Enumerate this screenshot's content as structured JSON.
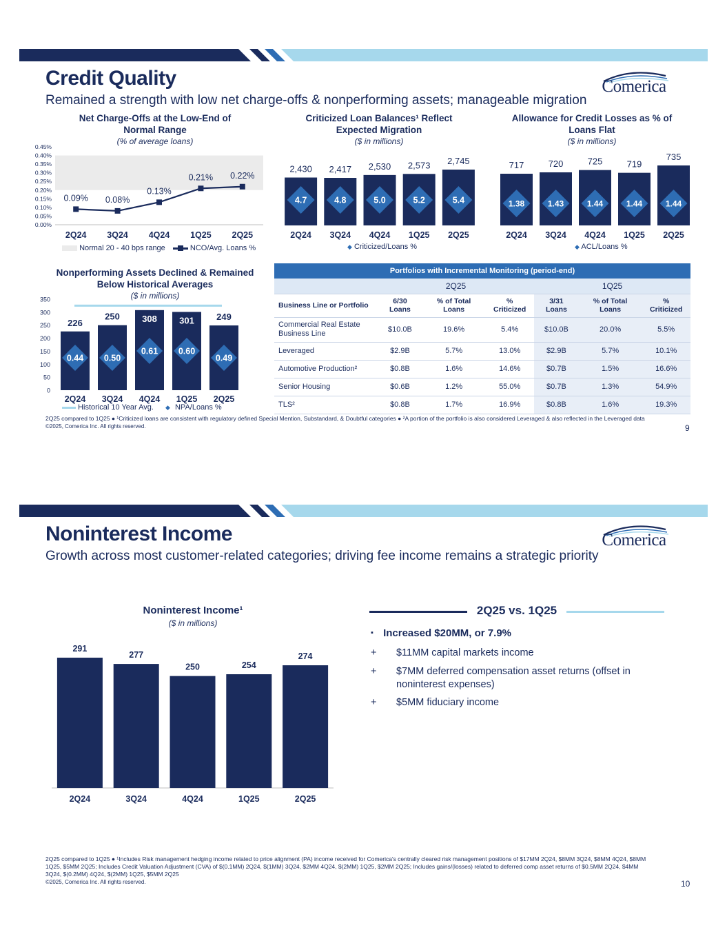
{
  "colors": {
    "navy": "#1a2b5c",
    "blue": "#2e6db4",
    "light_blue": "#a6d8ec",
    "band_gray": "#ebebeb",
    "row_shade": "#e8eef7"
  },
  "logo": {
    "text": "Comerica"
  },
  "slide1": {
    "title": "Credit Quality",
    "subtitle": "Remained a strength with low net charge-offs & nonperforming assets; manageable migration",
    "nco": {
      "title_line1": "Net Charge-Offs at the Low-End of",
      "title_line2": "Normal Range",
      "unit": "(% of average loans)",
      "legend_band": "Normal 20 - 40 bps range",
      "legend_line": "NCO/Avg. Loans %"
    },
    "crit": {
      "title_line1": "Criticized Loan Balances¹ Reflect",
      "title_line2": "Expected Migration",
      "unit": "($ in millions)",
      "legend": "Criticized/Loans %"
    },
    "acl": {
      "title_line1": "Allowance for Credit Losses as % of",
      "title_line2": "Loans Flat",
      "unit": "($ in millions)",
      "legend": "ACL/Loans %"
    },
    "npa": {
      "title_line1": "Nonperforming Assets Declined & Remained",
      "title_line2": "Below Historical Averages",
      "unit": "($ in millions)",
      "legend_line": "Historical 10 Year Avg.",
      "legend_marker": "NPA/Loans %"
    },
    "table": {
      "caption": "Portfolios with Incremental Monitoring (period-end)",
      "group1": "2Q25",
      "group2": "1Q25",
      "headers": [
        "Business Line or Portfolio",
        "6/30 Loans",
        "% of Total Loans",
        "% Criticized",
        "3/31 Loans",
        "% of Total Loans",
        "% Criticized"
      ],
      "rows": [
        [
          "Commercial Real Estate Business Line",
          "$10.0B",
          "19.6%",
          "5.4%",
          "$10.0B",
          "20.0%",
          "5.5%"
        ],
        [
          "Leveraged",
          "$2.9B",
          "5.7%",
          "13.0%",
          "$2.9B",
          "5.7%",
          "10.1%"
        ],
        [
          "Automotive Production²",
          "$0.8B",
          "1.6%",
          "14.6%",
          "$0.7B",
          "1.5%",
          "16.6%"
        ],
        [
          "Senior Housing",
          "$0.6B",
          "1.2%",
          "55.0%",
          "$0.7B",
          "1.3%",
          "54.9%"
        ],
        [
          "TLS²",
          "$0.8B",
          "1.7%",
          "16.9%",
          "$0.8B",
          "1.6%",
          "19.3%"
        ]
      ]
    },
    "footnote": "2Q25 compared to 1Q25 ● ¹Criticized loans are consistent with regulatory defined Special Mention, Substandard, & Doubtful categories ● ²A portion of the portfolio is also considered Leveraged & also reflected in the Leveraged data",
    "copyright": "©2025, Comerica Inc. All rights reserved.",
    "page": "9"
  },
  "slide2": {
    "title": "Noninterest Income",
    "subtitle": "Growth across most customer-related categories; driving fee income remains a strategic priority",
    "chart": {
      "title": "Noninterest Income¹",
      "unit": "($ in millions)"
    },
    "panel_title": "2Q25 vs. 1Q25",
    "bullet_main": "Increased $20MM, or 7.9%",
    "bullets": [
      "$11MM capital markets income",
      "$7MM deferred compensation asset returns (offset in",
      "noninterest expenses)",
      "$5MM fiduciary income"
    ],
    "bullet_marks": [
      "▪",
      "+",
      "+",
      "+"
    ],
    "footnote_lines": [
      "2Q25 compared to 1Q25 ● ¹Includes Risk management hedging income related to price alignment (PA) income received for Comerica's centrally cleared risk management positions of $17MM 2Q24, $8MM 3Q24, $8MM 4Q24, $8MM",
      "1Q25, $5MM 2Q25; Includes Credit Valuation Adjustment (CVA) of $(0.1MM) 2Q24, $(1MM) 3Q24, $2MM 4Q24, $(2MM) 1Q25, $2MM 2Q25; Includes gains/(losses) related to deferred comp asset returns of $0.5MM 2Q24, $4MM",
      "3Q24, $(0.2MM) 4Q24, $(2MM) 1Q25, $5MM 2Q25"
    ],
    "copyright": "©2025, Comerica Inc. All rights reserved.",
    "page": "10"
  },
  "chart_data": [
    {
      "id": "nco",
      "type": "line",
      "title": "Net Charge-Offs at the Low-End of Normal Range",
      "categories": [
        "2Q24",
        "3Q24",
        "4Q24",
        "1Q25",
        "2Q25"
      ],
      "values": [
        0.09,
        0.08,
        0.13,
        0.21,
        0.22
      ],
      "labels": [
        "0.09%",
        "0.08%",
        "0.13%",
        "0.21%",
        "0.22%"
      ],
      "yticks": [
        "0.00%",
        "0.05%",
        "0.10%",
        "0.15%",
        "0.20%",
        "0.25%",
        "0.30%",
        "0.35%",
        "0.40%",
        "0.45%"
      ],
      "ylim": [
        0,
        0.45
      ],
      "band": [
        0.2,
        0.4
      ]
    },
    {
      "id": "crit",
      "type": "bar",
      "title": "Criticized Loan Balances Reflect Expected Migration",
      "categories": [
        "2Q24",
        "3Q24",
        "4Q24",
        "1Q25",
        "2Q25"
      ],
      "values": [
        2430,
        2417,
        2530,
        2573,
        2745
      ],
      "labels": [
        "2,430",
        "2,417",
        "2,530",
        "2,573",
        "2,745"
      ],
      "ratio": [
        4.7,
        4.8,
        5.0,
        5.2,
        5.4
      ],
      "ratio_labels": [
        "4.7",
        "4.8",
        "5.0",
        "5.2",
        "5.4"
      ]
    },
    {
      "id": "acl",
      "type": "bar",
      "title": "Allowance for Credit Losses as % of Loans Flat",
      "categories": [
        "2Q24",
        "3Q24",
        "4Q24",
        "1Q25",
        "2Q25"
      ],
      "values": [
        717,
        720,
        725,
        719,
        735
      ],
      "labels": [
        "717",
        "720",
        "725",
        "719",
        "735"
      ],
      "ratio": [
        1.38,
        1.43,
        1.44,
        1.44,
        1.44
      ],
      "ratio_labels": [
        "1.38",
        "1.43",
        "1.44",
        "1.44",
        "1.44"
      ]
    },
    {
      "id": "npa",
      "type": "bar",
      "title": "Nonperforming Assets Declined & Remained Below Historical Averages",
      "categories": [
        "2Q24",
        "3Q24",
        "4Q24",
        "1Q25",
        "2Q25"
      ],
      "values": [
        226,
        250,
        308,
        301,
        249
      ],
      "labels": [
        "226",
        "250",
        "308",
        "301",
        "249"
      ],
      "ratio": [
        0.44,
        0.5,
        0.61,
        0.6,
        0.49
      ],
      "ratio_labels": [
        "0.44",
        "0.50",
        "0.61",
        "0.60",
        "0.49"
      ],
      "historical_avg": 325,
      "yticks": [
        "0",
        "50",
        "100",
        "150",
        "200",
        "250",
        "300",
        "350"
      ],
      "ylim": [
        0,
        350
      ]
    },
    {
      "id": "nii",
      "type": "bar",
      "title": "Noninterest Income",
      "categories": [
        "2Q24",
        "3Q24",
        "4Q24",
        "1Q25",
        "2Q25"
      ],
      "values": [
        291,
        277,
        250,
        254,
        274
      ],
      "labels": [
        "291",
        "277",
        "250",
        "254",
        "274"
      ]
    }
  ]
}
